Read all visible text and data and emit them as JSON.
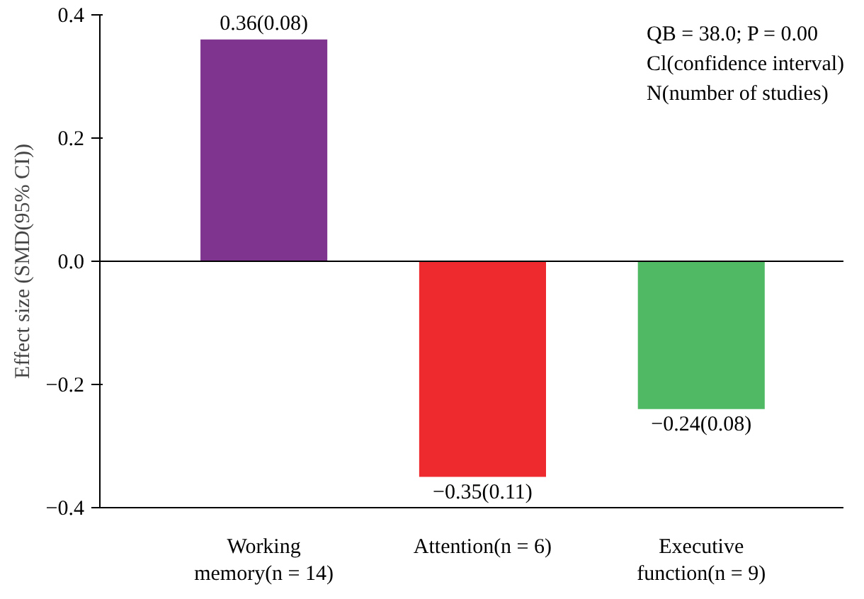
{
  "chart_data": {
    "type": "bar",
    "ylabel": "Effect size (SMD(95% CI))",
    "categories": [
      "Working memory(n = 14)",
      "Attention(n = 6)",
      "Executive function(n = 9)"
    ],
    "values": [
      0.36,
      -0.35,
      -0.24
    ],
    "colors": [
      "#7f3590",
      "#ee2a2e",
      "#4fba63"
    ],
    "value_labels": [
      "0.36(0.08)",
      "−0.35(0.11)",
      "−0.24(0.08)"
    ],
    "ylim": [
      -0.4,
      0.4
    ],
    "yticks": [
      {
        "value": -0.4,
        "label": "−0.4"
      },
      {
        "value": -0.2,
        "label": "−0.2"
      },
      {
        "value": 0,
        "label": "0.0"
      },
      {
        "value": 0.2,
        "label": "0.2"
      },
      {
        "value": 0.4,
        "label": "0.4"
      }
    ],
    "ref_lines": [
      {
        "axis": "y",
        "value": 0,
        "color": "#000000"
      }
    ],
    "annotations": [
      "QB = 38.0; P = 0.00",
      "Cl(confidence interval)",
      "N(number of studies)"
    ],
    "grid": false
  }
}
